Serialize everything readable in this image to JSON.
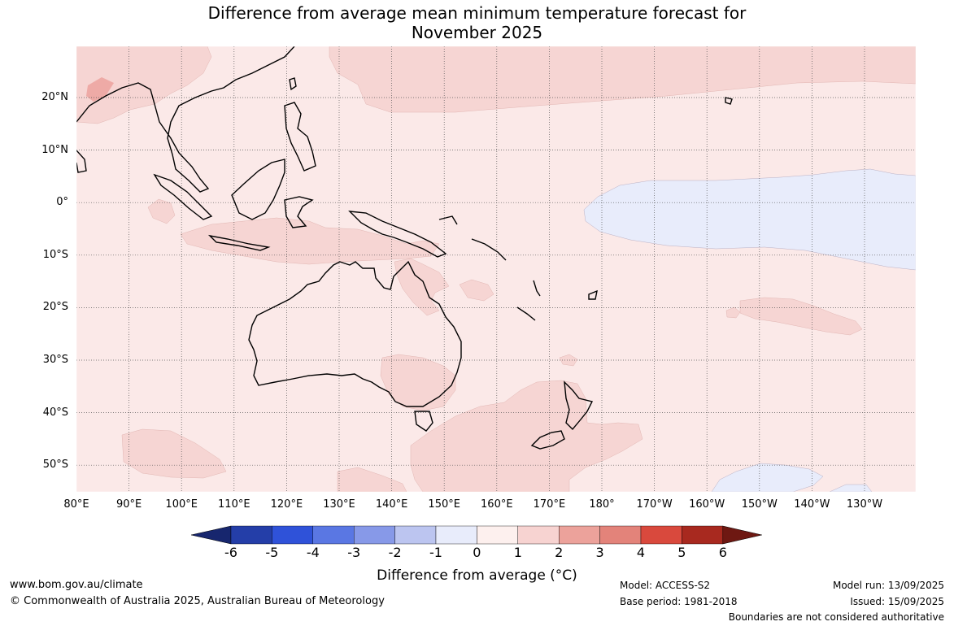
{
  "title_line1": "Difference from average mean minimum temperature forecast for",
  "title_line2": "November 2025",
  "lat_ticks": [
    "20°N",
    "10°N",
    "0°",
    "10°S",
    "20°S",
    "30°S",
    "40°S",
    "50°S"
  ],
  "lon_ticks": [
    "80°E",
    "90°E",
    "100°E",
    "110°E",
    "120°E",
    "130°E",
    "140°E",
    "150°E",
    "160°E",
    "170°E",
    "180°",
    "170°W",
    "160°W",
    "150°W",
    "140°W",
    "130°W"
  ],
  "colorbar": {
    "ticks": [
      "-6",
      "-5",
      "-4",
      "-3",
      "-2",
      "-1",
      "0",
      "1",
      "2",
      "3",
      "4",
      "5",
      "6"
    ],
    "colors": [
      "#243ea8",
      "#2f52d9",
      "#5a77e3",
      "#8799e8",
      "#bcc5f0",
      "#e8ecfb",
      "#fdf0ee",
      "#f7d3d1",
      "#eca29b",
      "#e3837a",
      "#d9493d",
      "#a8291f"
    ],
    "under_color": "#17266e",
    "over_color": "#6e1812",
    "label": "Difference from average (°C)"
  },
  "colors": {
    "base_anomaly": "#fbe9e8",
    "warm_anomaly": "#f6d5d3",
    "cool_anomaly": "#e8ecfb",
    "warmer_anomaly": "#eeaaa6",
    "coast": "#000000",
    "grid": "#555555"
  },
  "footer": {
    "url": "www.bom.gov.au/climate",
    "copyright": "© Commonwealth of Australia 2025, Australian Bureau of Meteorology",
    "model": "Model: ACCESS-S2",
    "base_period": "Base period: 1981-2018",
    "model_run": "Model run: 13/09/2025",
    "issued": "Issued: 15/09/2025",
    "boundaries": "Boundaries are not considered authoritative"
  }
}
